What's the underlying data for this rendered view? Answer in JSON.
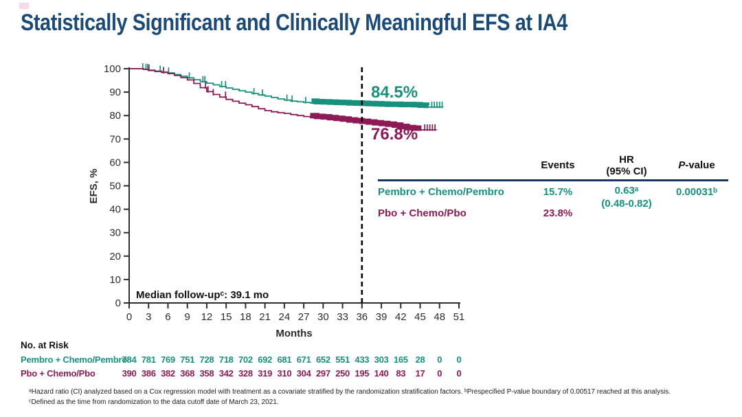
{
  "slide": {
    "title": "Statistically Significant and Clinically Meaningful EFS at IA4"
  },
  "colors": {
    "teal": "#17917E",
    "maroon": "#8D1A56",
    "navy_title": "#1B4A78",
    "table_rule": "#17365D",
    "axis_ink": "#2D2D2D",
    "dashed_line": "#000000",
    "accent_pink": "#F2A9CB"
  },
  "chart_data": {
    "type": "line",
    "subtype": "kaplan-meier",
    "title": "",
    "xlabel": "Months",
    "ylabel": "EFS, %",
    "xlim": [
      0,
      51
    ],
    "ylim": [
      0,
      100
    ],
    "xticks": [
      0,
      3,
      6,
      9,
      12,
      15,
      18,
      21,
      24,
      27,
      30,
      33,
      36,
      39,
      42,
      45,
      48,
      51
    ],
    "yticks": [
      0,
      10,
      20,
      30,
      40,
      50,
      60,
      70,
      80,
      90,
      100
    ],
    "grid": false,
    "legend_position": "none",
    "reference_line": {
      "x": 36,
      "style": "dashed"
    },
    "annotation": "Median follow-upᶜ: 39.1 mo",
    "series": [
      {
        "name": "Pembro + Chemo/Pembro",
        "color": "#17917E",
        "label_side": "above",
        "value_label": "84.5%",
        "points": [
          [
            0,
            100
          ],
          [
            1.8,
            100
          ],
          [
            2.2,
            99.8
          ],
          [
            3,
            99.4
          ],
          [
            4,
            99.0
          ],
          [
            5,
            98.6
          ],
          [
            6,
            98.2
          ],
          [
            7,
            97.5
          ],
          [
            8,
            96.8
          ],
          [
            9,
            96.1
          ],
          [
            10,
            95.3
          ],
          [
            11,
            94.5
          ],
          [
            12,
            93.8
          ],
          [
            13,
            93.1
          ],
          [
            14,
            92.4
          ],
          [
            15,
            91.8
          ],
          [
            16,
            91.2
          ],
          [
            17,
            90.6
          ],
          [
            18,
            90.0
          ],
          [
            19,
            89.4
          ],
          [
            20,
            88.8
          ],
          [
            21,
            88.3
          ],
          [
            22,
            87.7
          ],
          [
            23,
            87.1
          ],
          [
            24,
            86.6
          ],
          [
            25,
            86.2
          ],
          [
            26,
            85.9
          ],
          [
            27,
            85.6
          ],
          [
            28,
            85.4
          ],
          [
            29,
            85.2
          ],
          [
            30,
            85.1
          ],
          [
            31,
            85.0
          ],
          [
            32,
            84.9
          ],
          [
            33,
            84.8
          ],
          [
            34,
            84.7
          ],
          [
            35,
            84.6
          ],
          [
            36,
            84.5
          ],
          [
            37,
            84.4
          ],
          [
            38,
            84.3
          ],
          [
            39,
            84.2
          ],
          [
            40,
            84.1
          ],
          [
            42,
            84.0
          ],
          [
            44,
            83.9
          ],
          [
            45,
            83.7
          ],
          [
            46,
            83.6
          ],
          [
            48.5,
            83.5
          ]
        ],
        "censor_ticks": [
          2.1,
          2.6,
          3.1,
          4.8,
          6.1,
          9.3,
          11.4,
          11.7,
          14.3,
          14.9,
          19.3,
          20.6,
          24.4,
          25.2,
          27.3,
          46.8,
          47.2,
          47.6,
          48.0,
          48.4
        ],
        "dense_censor_ranges": [
          [
            28.2,
            46.3
          ]
        ]
      },
      {
        "name": "Pbo + Chemo/Pbo",
        "color": "#8D1A56",
        "label_side": "below",
        "value_label": "76.8%",
        "points": [
          [
            0,
            100
          ],
          [
            1.8,
            100
          ],
          [
            2.2,
            99.7
          ],
          [
            3,
            99.2
          ],
          [
            4,
            98.8
          ],
          [
            5,
            98.4
          ],
          [
            6,
            97.9
          ],
          [
            7,
            97.1
          ],
          [
            8,
            96.2
          ],
          [
            9,
            95.2
          ],
          [
            10,
            93.7
          ],
          [
            11,
            91.9
          ],
          [
            12,
            90.2
          ],
          [
            13,
            89.0
          ],
          [
            14,
            87.9
          ],
          [
            15,
            86.9
          ],
          [
            16,
            86.1
          ],
          [
            17,
            85.3
          ],
          [
            18,
            84.6
          ],
          [
            19,
            83.8
          ],
          [
            20,
            82.9
          ],
          [
            21,
            82.1
          ],
          [
            22,
            81.6
          ],
          [
            23,
            81.2
          ],
          [
            24,
            80.9
          ],
          [
            25,
            80.4
          ],
          [
            26,
            80.0
          ],
          [
            27,
            79.6
          ],
          [
            28,
            79.2
          ],
          [
            29,
            78.9
          ],
          [
            30,
            78.7
          ],
          [
            31,
            78.4
          ],
          [
            32,
            78.1
          ],
          [
            33,
            77.8
          ],
          [
            34,
            77.4
          ],
          [
            35,
            77.1
          ],
          [
            36,
            76.8
          ],
          [
            37,
            76.5
          ],
          [
            38,
            76.2
          ],
          [
            39,
            75.9
          ],
          [
            40,
            75.6
          ],
          [
            41,
            75.2
          ],
          [
            42,
            74.6
          ],
          [
            43,
            74.1
          ],
          [
            44,
            73.9
          ],
          [
            47.5,
            73.8
          ]
        ],
        "censor_ticks": [
          2.9,
          5.3,
          11.8,
          12.2,
          13.0,
          14.9,
          45.7,
          46.1,
          46.5,
          46.9,
          47.3
        ],
        "dense_censor_ranges": [
          [
            28.0,
            45.2
          ]
        ]
      }
    ],
    "at_risk": {
      "title": "No. at Risk",
      "months": [
        0,
        3,
        6,
        9,
        12,
        15,
        18,
        21,
        24,
        27,
        30,
        33,
        36,
        39,
        42,
        45,
        48,
        51
      ],
      "rows": [
        {
          "name": "Pembro + Chemo/Pembro",
          "color": "#17917E",
          "values": [
            784,
            781,
            769,
            751,
            728,
            718,
            702,
            692,
            681,
            671,
            652,
            551,
            433,
            303,
            165,
            28,
            0,
            0
          ]
        },
        {
          "name": "Pbo + Chemo/Pbo",
          "color": "#8D1A56",
          "values": [
            390,
            386,
            382,
            368,
            358,
            342,
            328,
            319,
            310,
            304,
            297,
            250,
            195,
            140,
            83,
            17,
            0,
            0
          ]
        }
      ]
    }
  },
  "summary_table": {
    "headers": {
      "events": "Events",
      "hr_line1": "HR",
      "hr_line2": "(95% CI)",
      "p_italic": "P",
      "p_rest": "-value"
    },
    "rows": [
      {
        "label": "Pembro + Chemo/Pembro",
        "events": "15.7%",
        "hr": "0.63ᵃ",
        "hr_ci": "(0.48-0.82)",
        "p": "0.00031ᵇ"
      },
      {
        "label": "Pbo + Chemo/Pbo",
        "events": "23.8%"
      }
    ]
  },
  "footnotes": {
    "line1": "ᵃHazard ratio (CI) analyzed based on a Cox regression model with treatment as a covariate stratified by the randomization stratification factors. ᵇPrespecified P-value boundary of 0.00517 reached at this analysis.",
    "line2": "ᶜDefined as the time from randomization to the data cutoff date of March 23, 2021."
  }
}
